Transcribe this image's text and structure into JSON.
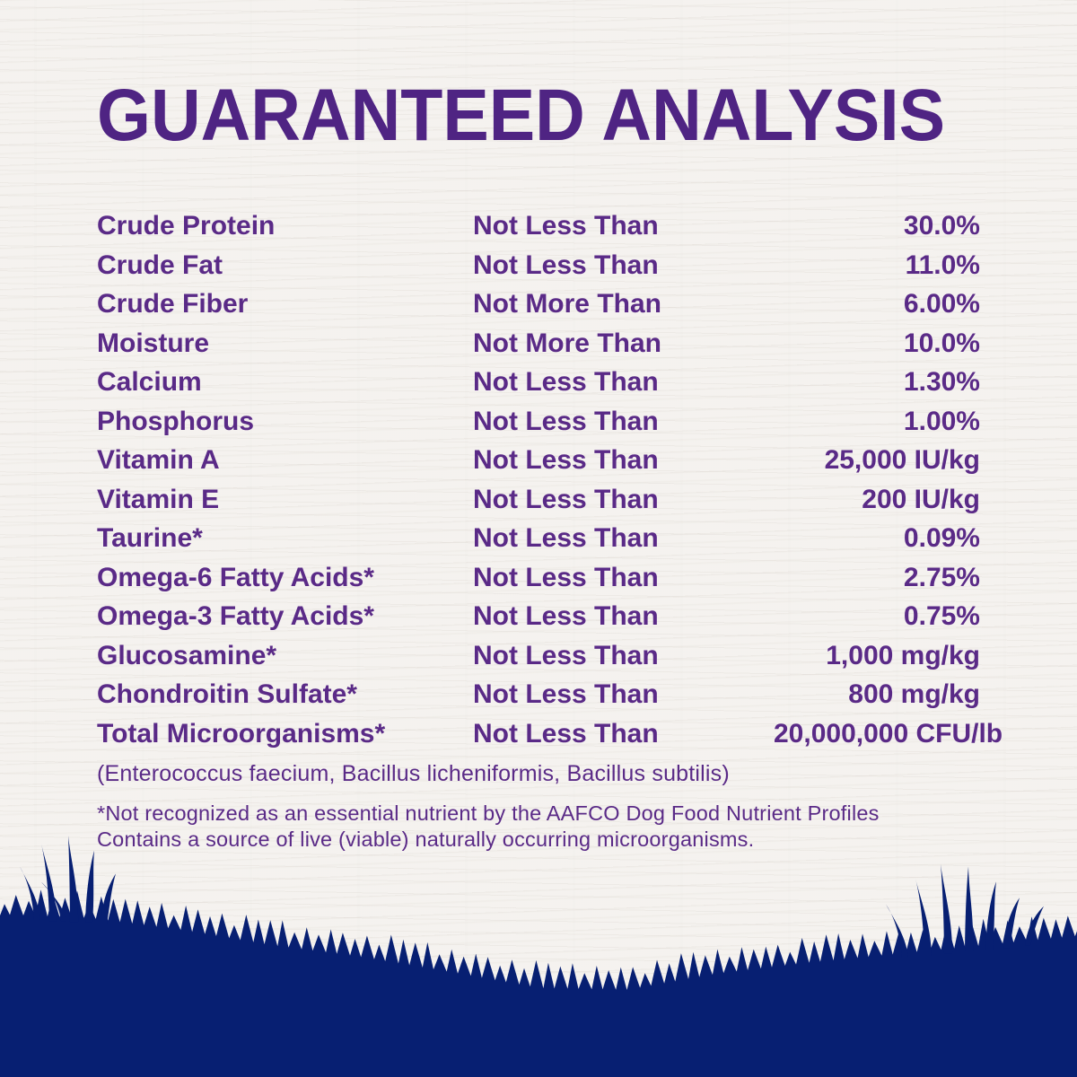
{
  "label": {
    "title": "GUARANTEED ANALYSIS",
    "rows": [
      {
        "nutrient": "Crude Protein",
        "qualifier": "Not Less Than",
        "value": "30.0%"
      },
      {
        "nutrient": "Crude Fat",
        "qualifier": "Not Less Than",
        "value": "11.0%"
      },
      {
        "nutrient": "Crude Fiber",
        "qualifier": "Not More Than",
        "value": "6.00%"
      },
      {
        "nutrient": "Moisture",
        "qualifier": "Not More Than",
        "value": "10.0%"
      },
      {
        "nutrient": "Calcium",
        "qualifier": "Not Less Than",
        "value": "1.30%"
      },
      {
        "nutrient": "Phosphorus",
        "qualifier": "Not Less Than",
        "value": "1.00%"
      },
      {
        "nutrient": "Vitamin A",
        "qualifier": "Not Less Than",
        "value": "25,000 IU/kg"
      },
      {
        "nutrient": "Vitamin E",
        "qualifier": "Not Less Than",
        "value": "200 IU/kg"
      },
      {
        "nutrient": "Taurine*",
        "qualifier": "Not Less Than",
        "value": "0.09%"
      },
      {
        "nutrient": "Omega-6 Fatty Acids*",
        "qualifier": "Not Less Than",
        "value": "2.75%"
      },
      {
        "nutrient": "Omega-3 Fatty Acids*",
        "qualifier": "Not Less Than",
        "value": "0.75%"
      },
      {
        "nutrient": "Glucosamine*",
        "qualifier": "Not Less Than",
        "value": "1,000 mg/kg"
      },
      {
        "nutrient": "Chondroitin Sulfate*",
        "qualifier": "Not Less Than",
        "value": "800 mg/kg"
      },
      {
        "nutrient": "Total Microorganisms*",
        "qualifier": "Not Less Than",
        "value": "20,000,000 CFU/lb"
      }
    ],
    "microorganisms_note": "(Enterococcus faecium, Bacillus licheniformis, Bacillus subtilis)",
    "footnotes": [
      "*Not recognized as an essential nutrient by the AAFCO Dog Food Nutrient Profiles",
      "Contains a source of live (viable) naturally occurring microorganisms."
    ],
    "colors": {
      "title_purple": "#4f2483",
      "text_purple": "#5a2a87",
      "grass_navy": "#071f72",
      "background": "#f7f5f2"
    }
  }
}
